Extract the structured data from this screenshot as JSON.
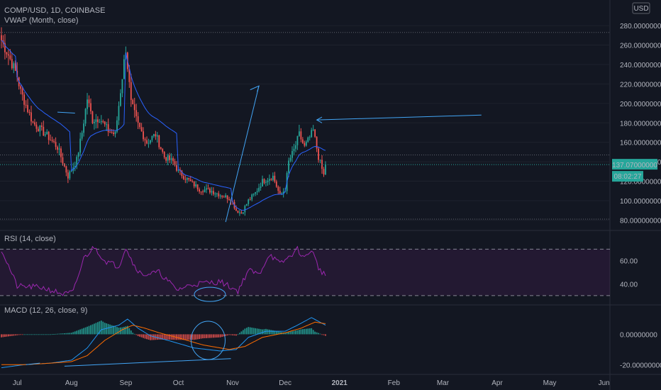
{
  "header": {
    "symbol": "COMP/USD, 1D, COINBASE",
    "vwap": "VWAP (Month, close)"
  },
  "currency": "USD",
  "price_tag": {
    "value": "137.07000000",
    "countdown": "08:02:27"
  },
  "rsi_pane": {
    "title": "RSI (14, close)"
  },
  "macd_pane": {
    "title": "MACD (12, 26, close, 9)"
  },
  "x_labels": [
    "Jul",
    "Aug",
    "Sep",
    "Oct",
    "Nov",
    "Dec",
    "2021",
    "Feb",
    "Mar",
    "Apr",
    "May",
    "Jun"
  ],
  "colors": {
    "up": "#26a69a",
    "down": "#ef5350",
    "vwap": "#2962ff",
    "rsi": "#9c27b0",
    "macd": "#2196f3",
    "signal": "#ff6d00",
    "accent": "#26a69a",
    "drawing": "#42a5f5"
  },
  "chart_data": [
    {
      "type": "candlestick",
      "title": "COMP/USD, 1D, COINBASE",
      "y_axis_labels": [
        "280.00000000",
        "260.00000000",
        "240.00000000",
        "220.00000000",
        "200.00000000",
        "180.00000000",
        "160.00000000",
        "140.00000000",
        "120.00000000",
        "100.00000000",
        "80.00000000"
      ],
      "ylim": [
        73,
        283
      ],
      "last_price": 137.07,
      "anchors": [
        [
          "2020-06-22",
          265
        ],
        [
          "2020-06-26",
          250
        ],
        [
          "2020-07-01",
          228
        ],
        [
          "2020-07-03",
          212
        ],
        [
          "2020-07-10",
          180
        ],
        [
          "2020-07-18",
          167
        ],
        [
          "2020-07-24",
          155
        ],
        [
          "2020-07-30",
          125
        ],
        [
          "2020-08-04",
          142
        ],
        [
          "2020-08-07",
          170
        ],
        [
          "2020-08-10",
          205
        ],
        [
          "2020-08-13",
          183
        ],
        [
          "2020-08-17",
          185
        ],
        [
          "2020-08-22",
          172
        ],
        [
          "2020-08-26",
          168
        ],
        [
          "2020-08-30",
          228
        ],
        [
          "2020-09-01",
          257
        ],
        [
          "2020-09-04",
          200
        ],
        [
          "2020-09-08",
          178
        ],
        [
          "2020-09-13",
          160
        ],
        [
          "2020-09-18",
          168
        ],
        [
          "2020-09-23",
          145
        ],
        [
          "2020-09-28",
          140
        ],
        [
          "2020-10-01",
          130
        ],
        [
          "2020-10-06",
          122
        ],
        [
          "2020-10-13",
          112
        ],
        [
          "2020-10-20",
          110
        ],
        [
          "2020-10-25",
          106
        ],
        [
          "2020-10-31",
          102
        ],
        [
          "2020-11-03",
          90
        ],
        [
          "2020-11-06",
          87
        ],
        [
          "2020-11-10",
          100
        ],
        [
          "2020-11-14",
          108
        ],
        [
          "2020-11-18",
          120
        ],
        [
          "2020-11-24",
          125
        ],
        [
          "2020-11-28",
          105
        ],
        [
          "2020-12-01",
          112
        ],
        [
          "2020-12-03",
          140
        ],
        [
          "2020-12-06",
          152
        ],
        [
          "2020-12-09",
          168
        ],
        [
          "2020-12-12",
          155
        ],
        [
          "2020-12-15",
          165
        ],
        [
          "2020-12-17",
          172
        ],
        [
          "2020-12-20",
          145
        ],
        [
          "2020-12-23",
          126
        ],
        [
          "2020-12-24",
          137.07
        ]
      ]
    },
    {
      "type": "line",
      "title": "RSI (14, close)",
      "y_axis_labels": [
        "60.00",
        "40.00"
      ],
      "ylim": [
        25,
        80
      ],
      "levels": [
        70,
        30
      ],
      "anchors": [
        [
          "2020-06-22",
          70
        ],
        [
          "2020-07-01",
          38
        ],
        [
          "2020-07-15",
          37
        ],
        [
          "2020-07-28",
          31
        ],
        [
          "2020-08-02",
          33
        ],
        [
          "2020-08-08",
          62
        ],
        [
          "2020-08-14",
          72
        ],
        [
          "2020-08-20",
          60
        ],
        [
          "2020-08-28",
          55
        ],
        [
          "2020-09-01",
          72
        ],
        [
          "2020-09-05",
          58
        ],
        [
          "2020-09-10",
          48
        ],
        [
          "2020-09-20",
          50
        ],
        [
          "2020-09-30",
          35
        ],
        [
          "2020-10-10",
          40
        ],
        [
          "2020-10-25",
          42
        ],
        [
          "2020-11-04",
          34
        ],
        [
          "2020-11-10",
          52
        ],
        [
          "2020-11-16",
          48
        ],
        [
          "2020-11-22",
          66
        ],
        [
          "2020-11-28",
          57
        ],
        [
          "2020-12-03",
          63
        ],
        [
          "2020-12-08",
          70
        ],
        [
          "2020-12-12",
          62
        ],
        [
          "2020-12-16",
          70
        ],
        [
          "2020-12-20",
          54
        ],
        [
          "2020-12-24",
          47
        ]
      ]
    },
    {
      "type": "bar+line",
      "title": "MACD (12, 26, close, 9)",
      "y_axis_labels": [
        "0.00000000",
        "-20.00000000"
      ],
      "ylim": [
        -25,
        17
      ],
      "macd": [
        [
          "2020-06-22",
          -22
        ],
        [
          "2020-07-05",
          -20
        ],
        [
          "2020-07-20",
          -19
        ],
        [
          "2020-08-01",
          -17
        ],
        [
          "2020-08-10",
          -9
        ],
        [
          "2020-08-18",
          3
        ],
        [
          "2020-08-28",
          6
        ],
        [
          "2020-09-02",
          10
        ],
        [
          "2020-09-08",
          4
        ],
        [
          "2020-09-15",
          -1
        ],
        [
          "2020-09-25",
          -4
        ],
        [
          "2020-10-10",
          -9
        ],
        [
          "2020-10-25",
          -11
        ],
        [
          "2020-11-03",
          -10
        ],
        [
          "2020-11-10",
          -2
        ],
        [
          "2020-11-20",
          2
        ],
        [
          "2020-12-01",
          2
        ],
        [
          "2020-12-08",
          6
        ],
        [
          "2020-12-16",
          11
        ],
        [
          "2020-12-24",
          6
        ]
      ],
      "signal": [
        [
          "2020-06-22",
          -20
        ],
        [
          "2020-07-05",
          -20
        ],
        [
          "2020-07-20",
          -19
        ],
        [
          "2020-08-01",
          -18
        ],
        [
          "2020-08-10",
          -14
        ],
        [
          "2020-08-20",
          -4
        ],
        [
          "2020-08-30",
          3
        ],
        [
          "2020-09-05",
          6
        ],
        [
          "2020-09-12",
          4
        ],
        [
          "2020-09-20",
          1
        ],
        [
          "2020-09-30",
          -2
        ],
        [
          "2020-10-15",
          -7
        ],
        [
          "2020-10-30",
          -10
        ],
        [
          "2020-11-08",
          -8
        ],
        [
          "2020-11-18",
          -2
        ],
        [
          "2020-12-01",
          1
        ],
        [
          "2020-12-10",
          4
        ],
        [
          "2020-12-18",
          8
        ],
        [
          "2020-12-24",
          7
        ]
      ]
    }
  ]
}
